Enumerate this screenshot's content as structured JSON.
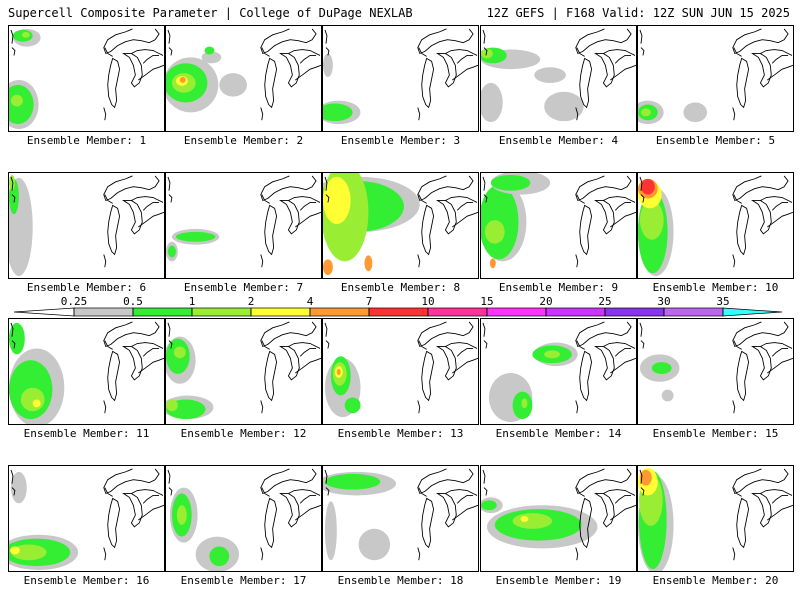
{
  "header": {
    "left_title": "Supercell Composite Parameter | College of DuPage NEXLAB",
    "right_title": "12Z GEFS | F168 Valid: 12Z SUN JUN 15 2025"
  },
  "colorbar": {
    "levels": [
      "0.25",
      "0.5",
      "1",
      "2",
      "4",
      "7",
      "10",
      "15",
      "20",
      "25",
      "30",
      "35"
    ],
    "colors": [
      "#c8c8c8",
      "#33ee33",
      "#99ee33",
      "#ffff33",
      "#ff9933",
      "#ff3333",
      "#ff3399",
      "#ff33ff",
      "#cc33ff",
      "#8833ee",
      "#bb66ee",
      "#33ffff"
    ]
  },
  "panels": [
    {
      "label": "Ensemble Member: 1",
      "blobs": [
        [
          "#c8c8c8",
          18,
          12,
          14,
          9
        ],
        [
          "#33ee33",
          14,
          10,
          10,
          6
        ],
        [
          "#99ee33",
          17,
          9,
          4,
          3
        ],
        [
          "#c8c8c8",
          10,
          80,
          20,
          25
        ],
        [
          "#33ee33",
          9,
          80,
          16,
          20
        ],
        [
          "#99ee33",
          8,
          76,
          6,
          6
        ]
      ]
    },
    {
      "label": "Ensemble Member: 2",
      "blobs": [
        [
          "#c8c8c8",
          25,
          60,
          28,
          28
        ],
        [
          "#33ee33",
          20,
          58,
          22,
          20
        ],
        [
          "#99ee33",
          18,
          58,
          12,
          10
        ],
        [
          "#ffff33",
          16,
          56,
          6,
          5
        ],
        [
          "#ff9933",
          17,
          55,
          3,
          3
        ],
        [
          "#c8c8c8",
          46,
          32,
          10,
          6
        ],
        [
          "#33ee33",
          44,
          25,
          5,
          4
        ],
        [
          "#c8c8c8",
          68,
          60,
          14,
          12
        ]
      ]
    },
    {
      "label": "Ensemble Member: 3",
      "blobs": [
        [
          "#c8c8c8",
          16,
          88,
          22,
          12
        ],
        [
          "#33ee33",
          12,
          88,
          18,
          9
        ],
        [
          "#c8c8c8",
          5,
          40,
          5,
          12
        ]
      ]
    },
    {
      "label": "Ensemble Member: 4",
      "blobs": [
        [
          "#c8c8c8",
          30,
          34,
          30,
          10
        ],
        [
          "#33ee33",
          12,
          30,
          14,
          8
        ],
        [
          "#99ee33",
          6,
          28,
          6,
          5
        ],
        [
          "#c8c8c8",
          70,
          50,
          16,
          8
        ],
        [
          "#c8c8c8",
          84,
          82,
          20,
          15
        ],
        [
          "#c8c8c8",
          10,
          78,
          12,
          20
        ]
      ]
    },
    {
      "label": "Ensemble Member: 5",
      "blobs": [
        [
          "#c8c8c8",
          10,
          88,
          16,
          12
        ],
        [
          "#33ee33",
          10,
          88,
          10,
          8
        ],
        [
          "#99ee33",
          8,
          88,
          5,
          4
        ],
        [
          "#c8c8c8",
          58,
          88,
          12,
          10
        ]
      ]
    },
    {
      "label": "Ensemble Member: 6",
      "blobs": [
        [
          "#c8c8c8",
          10,
          55,
          14,
          50
        ],
        [
          "#33ee33",
          5,
          24,
          5,
          18
        ],
        [
          "#99ee33",
          3,
          10,
          3,
          8
        ]
      ]
    },
    {
      "label": "Ensemble Member: 7",
      "blobs": [
        [
          "#c8c8c8",
          30,
          65,
          24,
          8
        ],
        [
          "#33ee33",
          30,
          65,
          20,
          5
        ],
        [
          "#c8c8c8",
          6,
          80,
          6,
          10
        ],
        [
          "#33ee33",
          6,
          80,
          4,
          6
        ]
      ]
    },
    {
      "label": "Ensemble Member: 8",
      "blobs": [
        [
          "#c8c8c8",
          38,
          32,
          60,
          28
        ],
        [
          "#33ee33",
          34,
          34,
          48,
          26
        ],
        [
          "#99ee33",
          22,
          40,
          24,
          50
        ],
        [
          "#ffff33",
          14,
          28,
          14,
          24
        ],
        [
          "#ff9933",
          5,
          96,
          5,
          8
        ],
        [
          "#ff9933",
          46,
          92,
          4,
          8
        ]
      ]
    },
    {
      "label": "Ensemble Member: 9",
      "blobs": [
        [
          "#c8c8c8",
          22,
          50,
          24,
          40
        ],
        [
          "#33ee33",
          18,
          50,
          20,
          38
        ],
        [
          "#99ee33",
          14,
          60,
          10,
          12
        ],
        [
          "#ff9933",
          12,
          92,
          3,
          5
        ],
        [
          "#c8c8c8",
          40,
          10,
          30,
          12
        ],
        [
          "#33ee33",
          30,
          10,
          20,
          8
        ]
      ]
    },
    {
      "label": "Ensemble Member: 10",
      "blobs": [
        [
          "#c8c8c8",
          18,
          60,
          18,
          45
        ],
        [
          "#33ee33",
          15,
          60,
          15,
          42
        ],
        [
          "#99ee33",
          14,
          48,
          12,
          20
        ],
        [
          "#ffff33",
          12,
          22,
          12,
          14
        ],
        [
          "#ff9933",
          10,
          16,
          10,
          10
        ],
        [
          "#ff3333",
          10,
          14,
          7,
          8
        ]
      ]
    },
    {
      "label": "Ensemble Member: 11",
      "blobs": [
        [
          "#c8c8c8",
          28,
          70,
          28,
          40
        ],
        [
          "#33ee33",
          22,
          72,
          22,
          30
        ],
        [
          "#99ee33",
          24,
          82,
          12,
          12
        ],
        [
          "#ffff33",
          28,
          86,
          4,
          4
        ],
        [
          "#33ee33",
          8,
          20,
          8,
          16
        ]
      ]
    },
    {
      "label": "Ensemble Member: 12",
      "blobs": [
        [
          "#c8c8c8",
          14,
          42,
          16,
          24
        ],
        [
          "#33ee33",
          12,
          38,
          12,
          18
        ],
        [
          "#99ee33",
          14,
          34,
          6,
          6
        ],
        [
          "#c8c8c8",
          22,
          90,
          26,
          12
        ],
        [
          "#33ee33",
          20,
          92,
          20,
          10
        ],
        [
          "#99ee33",
          6,
          88,
          6,
          6
        ]
      ]
    },
    {
      "label": "Ensemble Member: 13",
      "blobs": [
        [
          "#c8c8c8",
          20,
          70,
          18,
          30
        ],
        [
          "#33ee33",
          18,
          58,
          10,
          20
        ],
        [
          "#99ee33",
          17,
          56,
          7,
          12
        ],
        [
          "#ffff33",
          16,
          54,
          4,
          6
        ],
        [
          "#ff9933",
          16,
          54,
          2,
          3
        ],
        [
          "#33ee33",
          30,
          88,
          8,
          8
        ]
      ]
    },
    {
      "label": "Ensemble Member: 14",
      "blobs": [
        [
          "#c8c8c8",
          76,
          36,
          22,
          12
        ],
        [
          "#33ee33",
          72,
          36,
          20,
          9
        ],
        [
          "#99ee33",
          72,
          36,
          8,
          4
        ],
        [
          "#c8c8c8",
          30,
          80,
          22,
          25
        ],
        [
          "#33ee33",
          42,
          88,
          10,
          14
        ],
        [
          "#99ee33",
          44,
          86,
          3,
          5
        ]
      ]
    },
    {
      "label": "Ensemble Member: 15",
      "blobs": [
        [
          "#c8c8c8",
          22,
          50,
          20,
          14
        ],
        [
          "#33ee33",
          24,
          50,
          10,
          6
        ],
        [
          "#c8c8c8",
          30,
          78,
          6,
          6
        ]
      ]
    },
    {
      "label": "Ensemble Member: 16",
      "blobs": [
        [
          "#c8c8c8",
          30,
          88,
          40,
          18
        ],
        [
          "#33ee33",
          28,
          88,
          34,
          14
        ],
        [
          "#99ee33",
          20,
          88,
          18,
          8
        ],
        [
          "#ffff33",
          6,
          86,
          5,
          4
        ],
        [
          "#c8c8c8",
          10,
          22,
          8,
          16
        ]
      ]
    },
    {
      "label": "Ensemble Member: 17",
      "blobs": [
        [
          "#c8c8c8",
          18,
          50,
          14,
          28
        ],
        [
          "#33ee33",
          16,
          50,
          10,
          22
        ],
        [
          "#99ee33",
          16,
          50,
          5,
          10
        ],
        [
          "#c8c8c8",
          52,
          90,
          22,
          18
        ],
        [
          "#33ee33",
          54,
          92,
          10,
          10
        ]
      ]
    },
    {
      "label": "Ensemble Member: 18",
      "blobs": [
        [
          "#c8c8c8",
          34,
          18,
          40,
          12
        ],
        [
          "#33ee33",
          30,
          16,
          28,
          8
        ],
        [
          "#c8c8c8",
          8,
          66,
          6,
          30
        ],
        [
          "#c8c8c8",
          52,
          80,
          16,
          16
        ]
      ]
    },
    {
      "label": "Ensemble Member: 19",
      "blobs": [
        [
          "#c8c8c8",
          62,
          62,
          56,
          22
        ],
        [
          "#33ee33",
          58,
          60,
          44,
          16
        ],
        [
          "#99ee33",
          52,
          56,
          20,
          8
        ],
        [
          "#ffff33",
          44,
          54,
          4,
          3
        ],
        [
          "#c8c8c8",
          10,
          40,
          12,
          8
        ],
        [
          "#33ee33",
          8,
          40,
          8,
          5
        ]
      ]
    },
    {
      "label": "Ensemble Member: 20",
      "blobs": [
        [
          "#c8c8c8",
          18,
          60,
          18,
          50
        ],
        [
          "#33ee33",
          15,
          55,
          14,
          50
        ],
        [
          "#99ee33",
          13,
          35,
          12,
          26
        ],
        [
          "#ffff33",
          10,
          16,
          10,
          14
        ],
        [
          "#ff9933",
          8,
          12,
          6,
          8
        ]
      ]
    }
  ]
}
